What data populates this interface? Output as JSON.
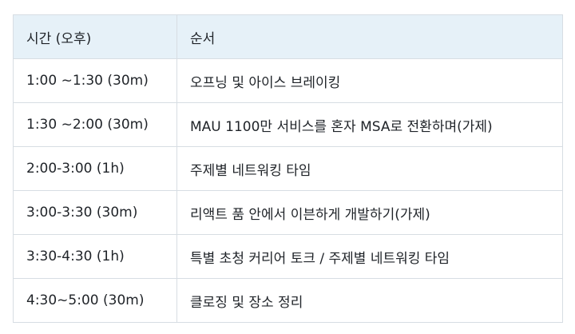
{
  "table": {
    "headers": [
      "시간 (오후)",
      "순서"
    ],
    "rows": [
      [
        "1:00 ~1:30 (30m)",
        "오프닝 및 아이스 브레이킹"
      ],
      [
        "1:30 ~2:00 (30m)",
        "MAU 1100만 서비스를 혼자 MSA로 전환하며(가제)"
      ],
      [
        "2:00-3:00 (1h)",
        "주제별 네트워킹 타임"
      ],
      [
        "3:00-3:30 (30m)",
        "리액트 품 안에서 이븐하게 개발하기(가제)"
      ],
      [
        "3:30-4:30 (1h)",
        "특별 초청 커리어 토크 / 주제별 네트워킹 타임"
      ],
      [
        "4:30~5:00 (30m)",
        "클로징 및 장소 정리"
      ]
    ]
  }
}
